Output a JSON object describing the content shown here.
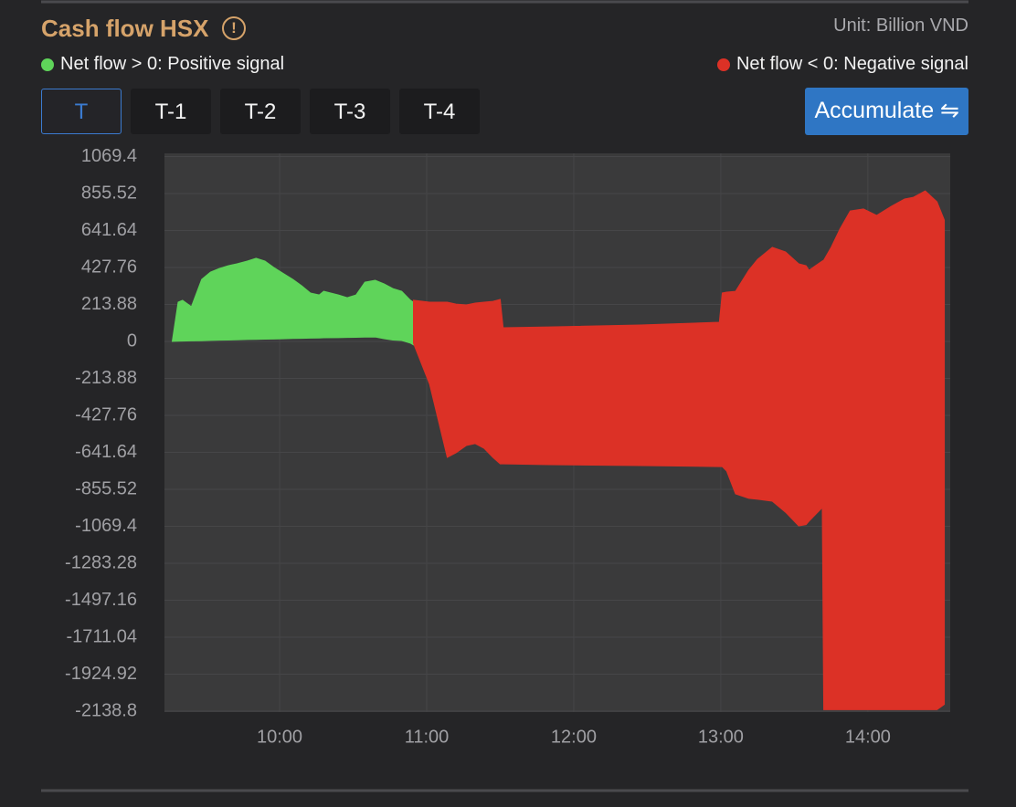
{
  "chart_data": {
    "type": "area-band",
    "title": "Cash flow HSX",
    "unit_label": "Unit: Billion VND",
    "tabs": [
      "T",
      "T-1",
      "T-2",
      "T-3",
      "T-4"
    ],
    "button": "Accumulate ⇋",
    "xlim": [
      9.217,
      14.56
    ],
    "xticks": [
      {
        "value": 10,
        "label": "10:00"
      },
      {
        "value": 11,
        "label": "11:00"
      },
      {
        "value": 12,
        "label": "12:00"
      },
      {
        "value": 13,
        "label": "13:00"
      },
      {
        "value": 14,
        "label": "14:00"
      }
    ],
    "ylim": [
      -2138.8,
      1069.4
    ],
    "yticks": [
      1069.4,
      855.52,
      641.64,
      427.76,
      213.88,
      0,
      -213.88,
      -427.76,
      -641.64,
      -855.52,
      -1069.4,
      -1283.28,
      -1497.16,
      -1711.04,
      -1924.92,
      -2138.8
    ],
    "grid": true,
    "series": [
      {
        "name": "Net flow > 0: Positive signal",
        "color": "#5fd45a",
        "x": [
          9.27,
          9.31,
          9.34,
          9.4,
          9.47,
          9.53,
          9.59,
          9.65,
          9.71,
          9.78,
          9.84,
          9.9,
          9.96,
          10.02,
          10.09,
          10.15,
          10.21,
          10.27,
          10.3,
          10.4,
          10.46,
          10.52,
          10.58,
          10.65,
          10.71,
          10.77,
          10.83,
          10.89,
          10.91
        ],
        "values": [
          0,
          227,
          238,
          201,
          359,
          401,
          422,
          438,
          449,
          465,
          481,
          465,
          428,
          396,
          359,
          322,
          280,
          269,
          290,
          269,
          253,
          269,
          343,
          354,
          333,
          306,
          290,
          238,
          227
        ],
        "low": [
          0,
          1,
          2,
          3,
          4,
          6,
          7,
          8,
          9,
          11,
          12,
          13,
          14,
          15,
          17,
          18,
          19,
          20,
          21,
          22,
          23,
          24,
          25,
          26,
          16,
          8,
          5,
          -10,
          -20
        ]
      },
      {
        "name": "Net flow < 0: Negative signal",
        "color": "#dc3126",
        "x": [
          10.91,
          11.02,
          11.14,
          11.2,
          11.27,
          11.33,
          11.39,
          11.45,
          11.5,
          11.52,
          11.83,
          12.45,
          12.99,
          13.01,
          13.04,
          13.1,
          13.19,
          13.25,
          13.35,
          13.44,
          13.53,
          13.58,
          13.6,
          13.69,
          13.7,
          13.75,
          13.81,
          13.88,
          13.97,
          14.06,
          14.16,
          14.25,
          14.31,
          14.39,
          14.47,
          14.52
        ],
        "values": [
          238,
          227,
          227,
          216,
          211,
          222,
          227,
          232,
          243,
          79,
          84,
          95,
          111,
          280,
          285,
          290,
          412,
          475,
          544,
          518,
          449,
          438,
          412,
          465,
          470,
          544,
          650,
          755,
          766,
          729,
          782,
          824,
          834,
          871,
          808,
          702
        ],
        "low": [
          -11,
          -248,
          -671,
          -644,
          -602,
          -591,
          -618,
          -671,
          -708,
          -708,
          -713,
          -718,
          -724,
          -724,
          -750,
          -882,
          -908,
          -913,
          -924,
          -988,
          -1067,
          -1060,
          -1040,
          -961,
          -2130,
          -2130,
          -2130,
          -2130,
          -2130,
          -2130,
          -2130,
          -2130,
          -2130,
          -2130,
          -2130,
          -2100
        ]
      }
    ]
  }
}
